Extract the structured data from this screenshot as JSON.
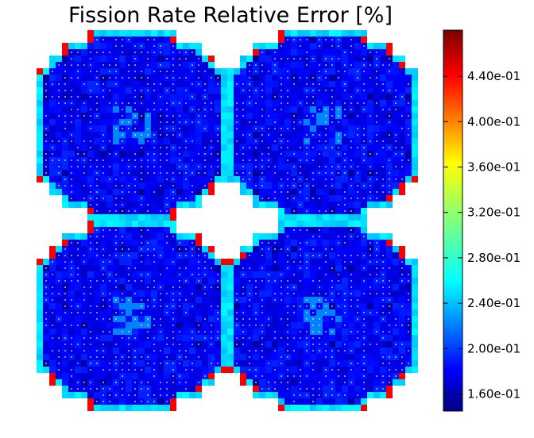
{
  "chart_data": {
    "type": "heatmap",
    "title": "Fission Rate Relative Error [%]",
    "colormap": "jet",
    "colorbar": {
      "min": 0.145,
      "max": 0.4806,
      "ticks": [
        {
          "value": 0.16,
          "label": "1.60e-01"
        },
        {
          "value": 0.2,
          "label": "2.00e-01"
        },
        {
          "value": 0.24,
          "label": "2.40e-01"
        },
        {
          "value": 0.28,
          "label": "2.80e-01"
        },
        {
          "value": 0.32,
          "label": "3.20e-01"
        },
        {
          "value": 0.36,
          "label": "3.60e-01"
        },
        {
          "value": 0.4,
          "label": "4.00e-01"
        },
        {
          "value": 0.44,
          "label": "4.40e-01"
        }
      ]
    },
    "layout": "2x2 fuel assembly quadrants",
    "value_ranges": {
      "interior_typical": 0.185,
      "interior_low": 0.155,
      "interior_high": 0.23,
      "boundary_edge": 0.26,
      "corner_hotspots": 0.44
    }
  }
}
